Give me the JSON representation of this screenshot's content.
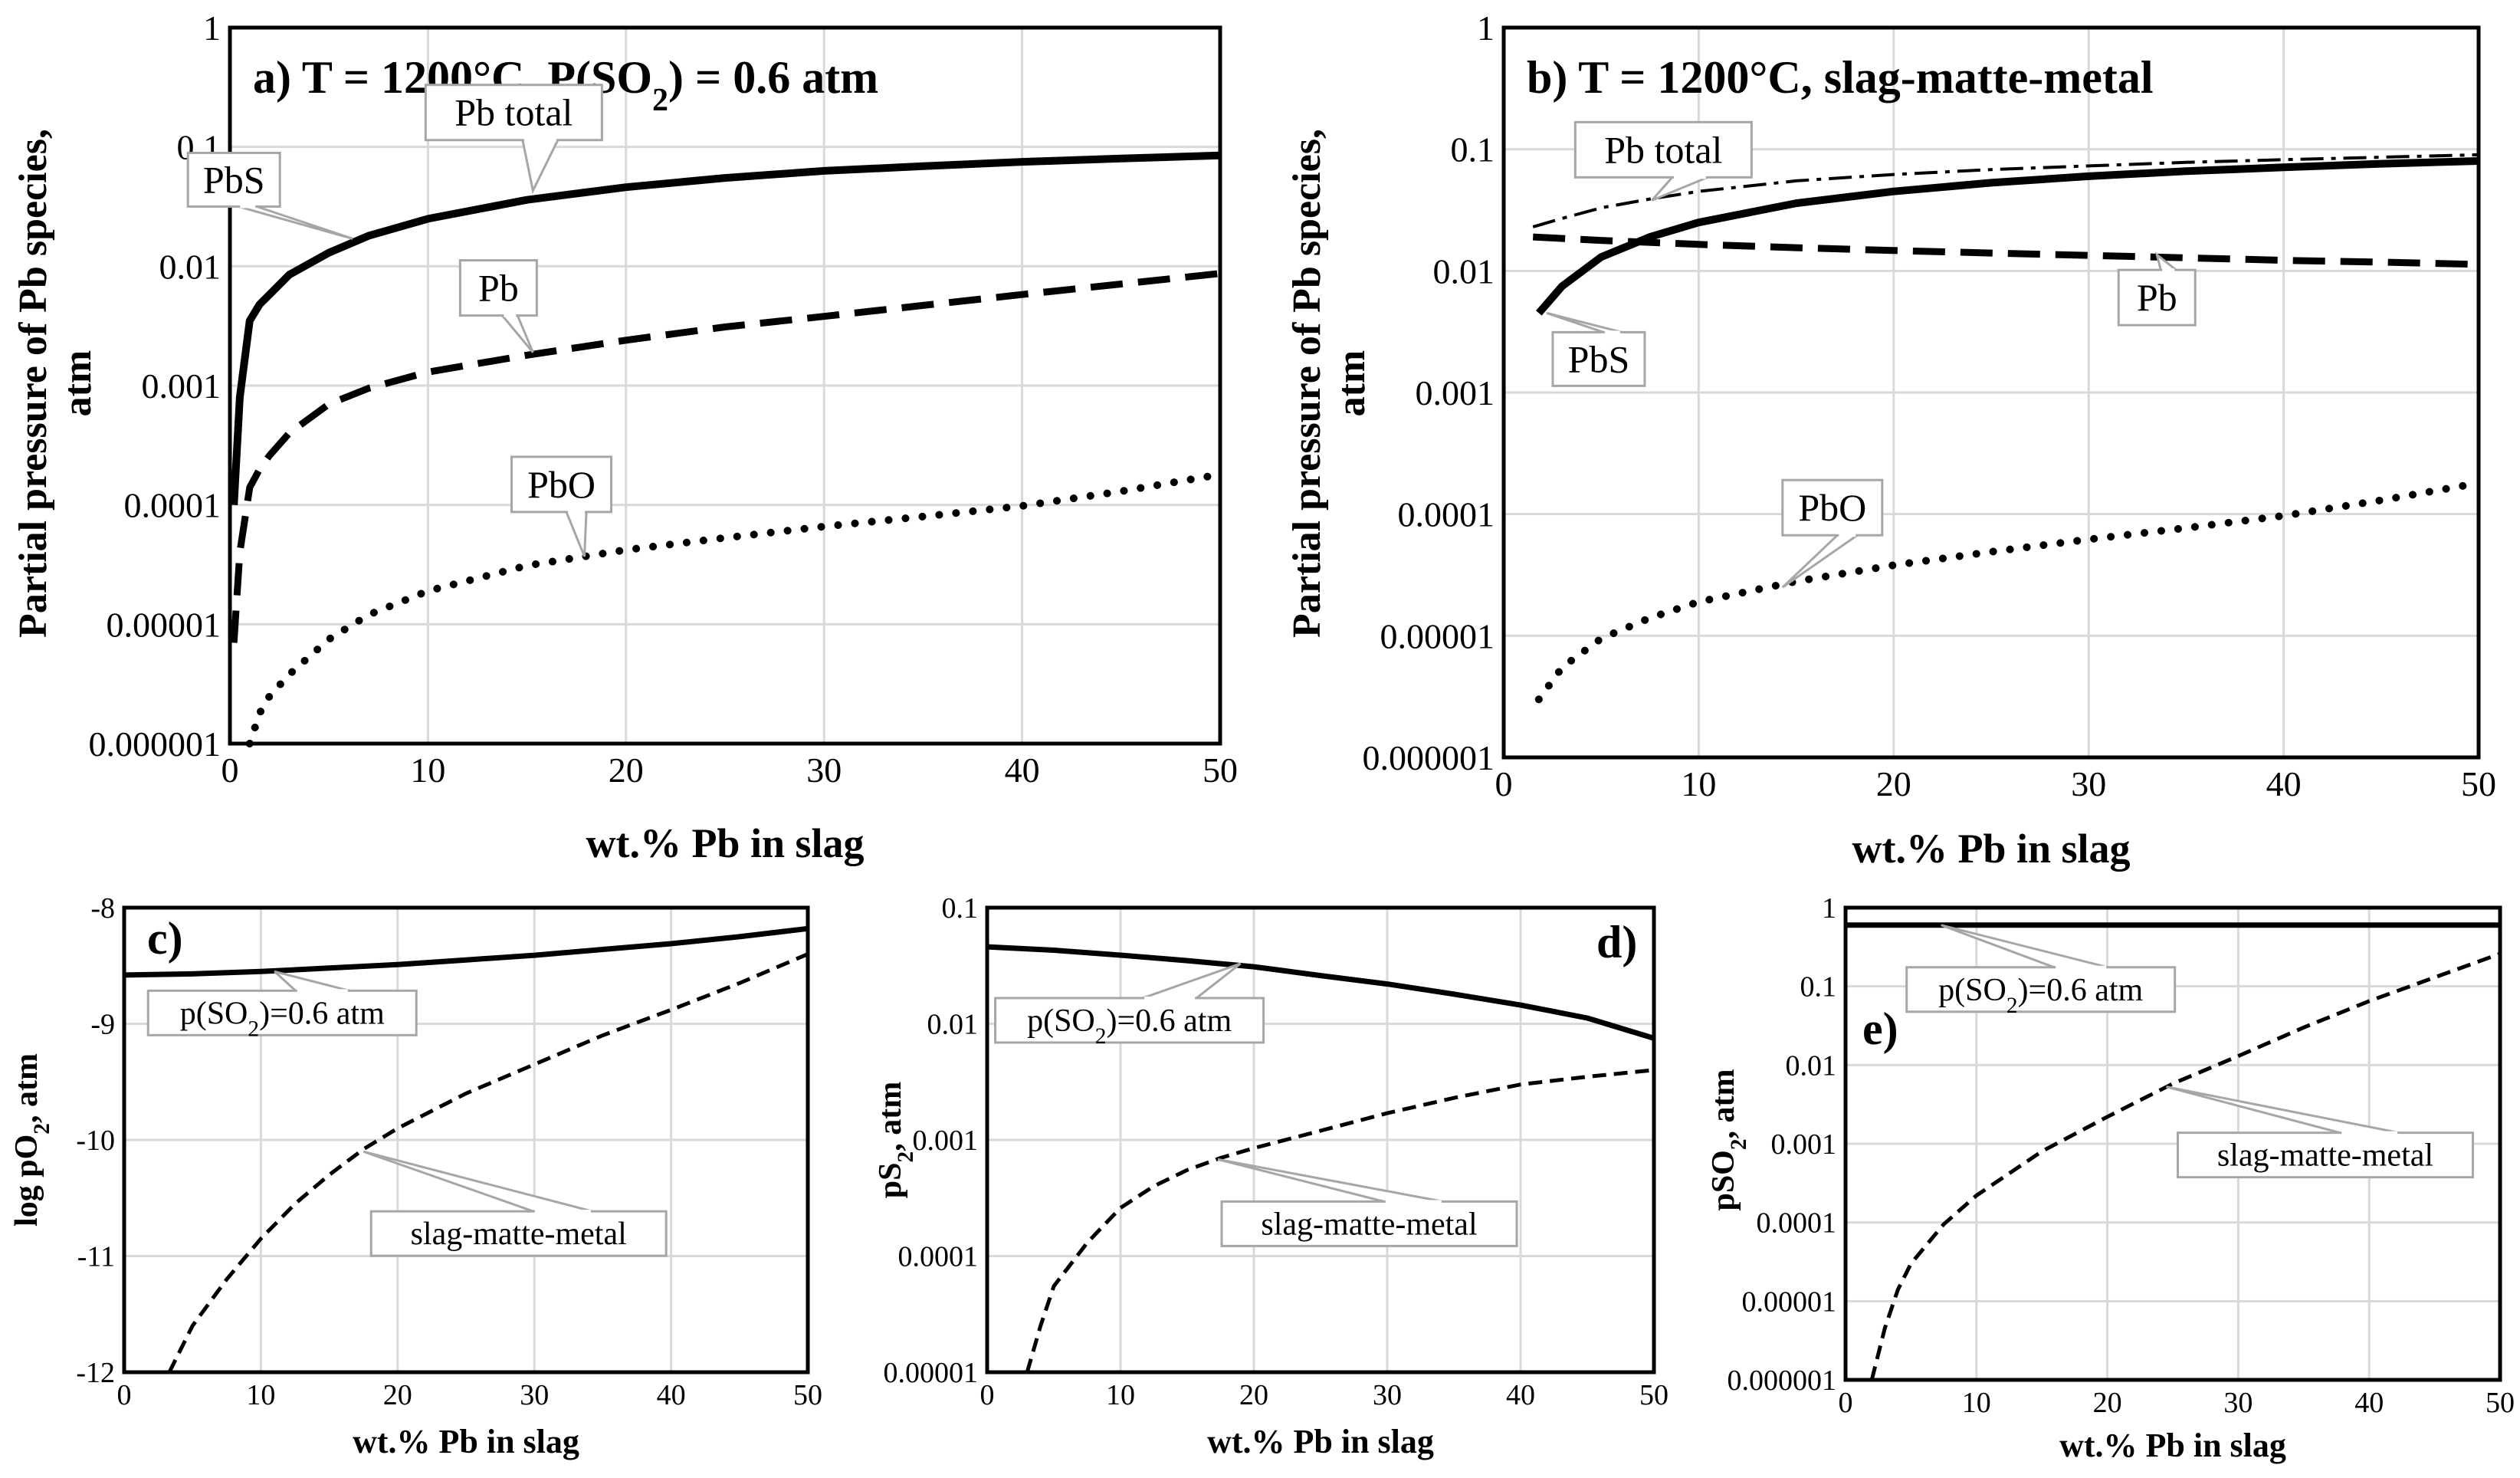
{
  "chart_data": [
    {
      "id": "a",
      "type": "line",
      "title": "a) T = 1200°C, P(SO2) = 0.6 atm",
      "xlabel": "wt.% Pb in slag",
      "ylabel": "Partial pressure of Pb species, atm",
      "yscale": "log",
      "xlim": [
        0,
        50
      ],
      "ylim": [
        1e-06,
        1
      ],
      "xticks": [
        "0",
        "10",
        "20",
        "30",
        "40",
        "50"
      ],
      "yticks": [
        "0.000001",
        "0.00001",
        "0.0001",
        "0.001",
        "0.01",
        "0.1",
        "1"
      ],
      "series": [
        {
          "name": "Pb total",
          "style": "solid-thick",
          "x": [
            0.2,
            0.5,
            1,
            1.5,
            2,
            3,
            5,
            7,
            10,
            15,
            20,
            25,
            30,
            35,
            40,
            45,
            50
          ],
          "y": [
            0.0001,
            0.0008,
            0.0035,
            0.0048,
            0.0058,
            0.0085,
            0.013,
            0.018,
            0.025,
            0.036,
            0.046,
            0.055,
            0.063,
            0.069,
            0.075,
            0.08,
            0.085
          ]
        },
        {
          "name": "Pb",
          "style": "dashed",
          "x": [
            0.2,
            0.5,
            1,
            1.5,
            2,
            3,
            5,
            7,
            10,
            15,
            20,
            25,
            30,
            35,
            40,
            45,
            50
          ],
          "y": [
            7e-06,
            4e-05,
            0.00014,
            0.0002,
            0.00026,
            0.0004,
            0.0007,
            0.00095,
            0.0013,
            0.0018,
            0.0024,
            0.0031,
            0.0038,
            0.0047,
            0.0058,
            0.0071,
            0.0087
          ]
        },
        {
          "name": "PbO",
          "style": "dotted",
          "x": [
            1,
            1.5,
            2,
            3,
            5,
            7,
            10,
            15,
            20,
            25,
            30,
            35,
            40,
            45,
            50
          ],
          "y": [
            1e-06,
            1.8e-06,
            2.5e-06,
            3.8e-06,
            7.5e-06,
            1.2e-05,
            1.9e-05,
            3.1e-05,
            4.2e-05,
            5.3e-05,
            6.6e-05,
            8e-05,
            9.8e-05,
            0.00013,
            0.00018
          ]
        }
      ],
      "annotations": [
        {
          "text": "Pb total",
          "x": 15.3,
          "y": 0.043
        },
        {
          "text": "PbS",
          "x": 6.2,
          "y": 0.017
        },
        {
          "text": "Pb",
          "x": 15.3,
          "y": 0.0019
        },
        {
          "text": "PbO",
          "x": 17.9,
          "y": 3.7e-05
        }
      ],
      "legend": "none"
    },
    {
      "id": "b",
      "type": "line",
      "title": "b) T = 1200°C, slag-matte-metal",
      "xlabel": "wt.% Pb in slag",
      "ylabel": "Partial pressure of Pb species, atm",
      "yscale": "log",
      "xlim": [
        0,
        50
      ],
      "ylim": [
        1e-06,
        1
      ],
      "xticks": [
        "0",
        "10",
        "20",
        "30",
        "40",
        "50"
      ],
      "yticks": [
        "0.000001",
        "0.00001",
        "0.0001",
        "0.001",
        "0.01",
        "0.1",
        "1"
      ],
      "series": [
        {
          "name": "Pb total",
          "style": "dashdot",
          "x": [
            1.5,
            3,
            5,
            7.5,
            10,
            15,
            20,
            25,
            30,
            35,
            40,
            45,
            50
          ],
          "y": [
            0.023,
            0.027,
            0.033,
            0.039,
            0.045,
            0.055,
            0.062,
            0.068,
            0.073,
            0.078,
            0.082,
            0.086,
            0.09
          ]
        },
        {
          "name": "PbS",
          "style": "solid-thick",
          "x": [
            1.8,
            3,
            5,
            7.5,
            10,
            15,
            20,
            25,
            30,
            35,
            40,
            45,
            50
          ],
          "y": [
            0.0045,
            0.0075,
            0.013,
            0.019,
            0.025,
            0.036,
            0.045,
            0.053,
            0.06,
            0.066,
            0.071,
            0.076,
            0.08
          ]
        },
        {
          "name": "Pb",
          "style": "dashed",
          "x": [
            1.5,
            5,
            10,
            15,
            20,
            25,
            30,
            35,
            40,
            45,
            50
          ],
          "y": [
            0.019,
            0.0178,
            0.0165,
            0.0155,
            0.0147,
            0.014,
            0.0134,
            0.0128,
            0.0122,
            0.0118,
            0.0113
          ]
        },
        {
          "name": "PbO",
          "style": "dotted",
          "x": [
            1.8,
            3,
            5,
            7.5,
            10,
            15,
            20,
            25,
            30,
            35,
            40,
            45,
            50
          ],
          "y": [
            3e-06,
            5.5e-06,
            9.5e-06,
            1.4e-05,
            1.9e-05,
            2.8e-05,
            3.8e-05,
            4.9e-05,
            6.2e-05,
            7.7e-05,
            9.7e-05,
            0.00013,
            0.00018
          ]
        }
      ],
      "annotations": [
        {
          "text": "Pb total",
          "x": 7.6,
          "y": 0.038
        },
        {
          "text": "PbS",
          "x": 2.2,
          "y": 0.0045
        },
        {
          "text": "Pb",
          "x": 33.5,
          "y": 0.0136
        },
        {
          "text": "PbO",
          "x": 14.3,
          "y": 2.5e-05
        }
      ],
      "legend": "none"
    },
    {
      "id": "c",
      "type": "line",
      "title": "c)",
      "xlabel": "wt.% Pb in slag",
      "ylabel": "log pO2, atm",
      "yscale": "linear",
      "xlim": [
        0,
        50
      ],
      "ylim": [
        -12,
        -8
      ],
      "xticks": [
        "0",
        "10",
        "20",
        "30",
        "40",
        "50"
      ],
      "yticks": [
        "-12",
        "-11",
        "-10",
        "-9",
        "-8"
      ],
      "series": [
        {
          "name": "p(SO2)=0.6 atm",
          "style": "solid",
          "x": [
            0,
            5,
            10,
            15,
            20,
            25,
            30,
            35,
            40,
            45,
            50
          ],
          "y": [
            -8.58,
            -8.57,
            -8.55,
            -8.52,
            -8.49,
            -8.45,
            -8.41,
            -8.36,
            -8.31,
            -8.25,
            -8.18
          ]
        },
        {
          "name": "slag-matte-metal",
          "style": "dashed",
          "x": [
            3.3,
            5,
            7.5,
            10,
            12.5,
            15,
            17.5,
            20,
            22.5,
            25,
            30,
            35,
            40,
            45,
            50
          ],
          "y": [
            -12.0,
            -11.6,
            -11.2,
            -10.85,
            -10.55,
            -10.3,
            -10.08,
            -9.9,
            -9.75,
            -9.6,
            -9.35,
            -9.1,
            -8.88,
            -8.65,
            -8.4
          ]
        }
      ],
      "annotations": [
        {
          "text": "p(SO2)=0.6 atm",
          "x": 11,
          "y": -8.55
        },
        {
          "text": "slag-matte-metal",
          "x": 17.5,
          "y": -10.1
        }
      ],
      "legend": "none"
    },
    {
      "id": "d",
      "type": "line",
      "title": "d)",
      "xlabel": "wt.% Pb in slag",
      "ylabel": "pS2, atm",
      "yscale": "log",
      "xlim": [
        0,
        50
      ],
      "ylim": [
        1e-05,
        0.1
      ],
      "xticks": [
        "0",
        "10",
        "20",
        "30",
        "40",
        "50"
      ],
      "yticks": [
        "0.00001",
        "0.0001",
        "0.001",
        "0.01",
        "0.1"
      ],
      "series": [
        {
          "name": "p(SO2)=0.6 atm",
          "style": "solid",
          "x": [
            0,
            5,
            10,
            15,
            20,
            25,
            30,
            35,
            40,
            45,
            50
          ],
          "y": [
            0.046,
            0.043,
            0.039,
            0.035,
            0.031,
            0.026,
            0.022,
            0.018,
            0.0145,
            0.0112,
            0.0075
          ]
        },
        {
          "name": "slag-matte-metal",
          "style": "dashed",
          "x": [
            3,
            4,
            5,
            7.5,
            10,
            12.5,
            15,
            17.5,
            20,
            25,
            30,
            35,
            40,
            45,
            50
          ],
          "y": [
            1e-05,
            2.5e-05,
            5.5e-05,
            0.00013,
            0.00026,
            0.0004,
            0.00055,
            0.0007,
            0.00085,
            0.0012,
            0.0017,
            0.0023,
            0.003,
            0.0035,
            0.004
          ]
        }
      ],
      "annotations": [
        {
          "text": "p(SO2)=0.6 atm",
          "x": 19,
          "y": 0.033
        },
        {
          "text": "slag-matte-metal",
          "x": 17.3,
          "y": 0.00068
        }
      ],
      "legend": "none"
    },
    {
      "id": "e",
      "type": "line",
      "title": "e)",
      "xlabel": "wt.% Pb in slag",
      "ylabel": "pSO2, atm",
      "yscale": "log",
      "xlim": [
        0,
        50
      ],
      "ylim": [
        1e-06,
        1
      ],
      "xticks": [
        "0",
        "10",
        "20",
        "30",
        "40",
        "50"
      ],
      "yticks": [
        "0.000001",
        "0.00001",
        "0.0001",
        "0.001",
        "0.01",
        "0.1",
        "1"
      ],
      "series": [
        {
          "name": "p(SO2)=0.6 atm",
          "style": "solid",
          "x": [
            0,
            50
          ],
          "y": [
            0.6,
            0.6
          ]
        },
        {
          "name": "slag-matte-metal",
          "style": "dashed",
          "x": [
            2,
            3,
            4,
            5,
            7.5,
            10,
            15,
            20,
            25,
            30,
            35,
            40,
            45,
            50
          ],
          "y": [
            1e-06,
            4.5e-06,
            1.4e-05,
            3e-05,
            9.5e-05,
            0.00022,
            0.0008,
            0.0022,
            0.0058,
            0.013,
            0.03,
            0.065,
            0.13,
            0.26
          ]
        }
      ],
      "annotations": [
        {
          "text": "p(SO2)=0.6 atm",
          "x": 7.3,
          "y": 0.6
        },
        {
          "text": "slag-matte-metal",
          "x": 24.5,
          "y": 0.0053
        }
      ],
      "legend": "none"
    }
  ]
}
